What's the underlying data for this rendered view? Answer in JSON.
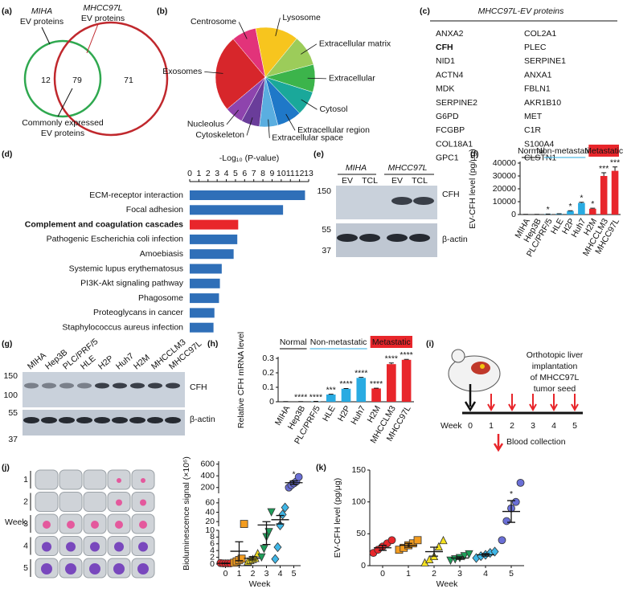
{
  "panel_labels": [
    "(a)",
    "(b)",
    "(c)",
    "(d)",
    "(e)",
    "(f)",
    "(g)",
    "(h)",
    "(i)",
    "(j)",
    "(k)"
  ],
  "venn": {
    "sets": [
      {
        "label_italic": "MIHA",
        "label": "EV proteins",
        "count": 12,
        "color": "#2fa84f"
      },
      {
        "label_italic": "MHCC97L",
        "label": "EV proteins",
        "count": 71,
        "color": "#c0282d"
      }
    ],
    "overlap": {
      "count": 79,
      "label": [
        "Commonly expressed",
        "EV proteins"
      ]
    }
  },
  "table": {
    "title": "MHCC97L-EV proteins",
    "columns": [
      [
        "ANXA2",
        "CFH",
        "NID1",
        "ACTN4",
        "MDK",
        "SERPINE2",
        "G6PD",
        "FCGBP",
        "COL18A1",
        "GPC1"
      ],
      [
        "COL2A1",
        "PLEC",
        "SERPINE1",
        "ANXA1",
        "FBLN1",
        "AKR1B10",
        "MET",
        "C1R",
        "S100A4",
        "CLSTN1"
      ]
    ],
    "highlight": [
      0,
      1
    ],
    "highlight_color": "#e8262b"
  },
  "blots": {
    "e": {
      "groups": [
        "MIHA",
        "MHCC97L"
      ],
      "lanes": [
        "EV",
        "TCL",
        "EV",
        "TCL"
      ],
      "markers": [
        150,
        55,
        37
      ],
      "bands": [
        "CFH",
        "β-actin"
      ]
    },
    "g": {
      "lanes": [
        "MIHA",
        "Hep3B",
        "PLC/PRF/5",
        "HLE",
        "H2P",
        "Huh7",
        "H2M",
        "MHCCLM3",
        "MHCC97L"
      ],
      "markers": [
        150,
        100,
        55,
        37
      ],
      "bands": [
        "CFH",
        "β-actin"
      ]
    }
  },
  "diagram": {
    "caption": [
      "Orthotopic liver",
      "implantation",
      "of MHCC97L",
      "tumor seed"
    ],
    "axis_label": "Week",
    "weeks": [
      0,
      1,
      2,
      3,
      4,
      5
    ],
    "legend": "Blood collection"
  },
  "images": {
    "axis_label": "Week",
    "rows": [
      1,
      2,
      3,
      4,
      5
    ]
  },
  "chart_data": [
    {
      "type": "pie",
      "categories": [
        "Exosomes",
        "Centrosome",
        "Lysosome",
        "Extracellular matrix",
        "Extracellular",
        "Cytosol",
        "Extracellular region",
        "Extracellular space",
        "Cytoskeleton",
        "Nucleolus"
      ],
      "values": [
        25,
        8,
        14,
        10,
        9,
        8,
        8,
        6,
        6,
        6
      ],
      "colors": [
        "#d7262b",
        "#e2337a",
        "#f7c51e",
        "#9ccc5a",
        "#3cb44b",
        "#1aa89a",
        "#1f78c8",
        "#5aaee0",
        "#6a3d9a",
        "#8e44ad"
      ]
    },
    {
      "type": "bar",
      "orientation": "horizontal",
      "x_label": "-Log₁₀ (P-value)",
      "categories": [
        "ECM-receptor interaction",
        "Focal adhesion",
        "Complement and coagulation cascades",
        "Pathogenic Escherichia coli infection",
        "Amoebiasis",
        "Systemic lupus erythematosus",
        "PI3K-Akt signaling pathway",
        "Phagosome",
        "Proteoglycans in cancer",
        "Staphylococcus aureus infection"
      ],
      "values": [
        12.6,
        10.2,
        5.3,
        5.2,
        4.8,
        3.5,
        3.3,
        3.2,
        2.7,
        2.6
      ],
      "colors": [
        "#2f6fb8",
        "#2f6fb8",
        "#e8262b",
        "#2f6fb8",
        "#2f6fb8",
        "#2f6fb8",
        "#2f6fb8",
        "#2f6fb8",
        "#2f6fb8",
        "#2f6fb8"
      ],
      "highlight": 2,
      "xlim": [
        0,
        13
      ],
      "xticks": [
        0,
        1,
        2,
        3,
        4,
        5,
        6,
        7,
        8,
        9,
        10,
        11,
        12,
        13
      ]
    },
    {
      "type": "bar",
      "y_label": "EV-CFH level (pg/μg)",
      "categories": [
        "MIHA",
        "Hep3B",
        "PLC/PRF/5",
        "HLE",
        "H2P",
        "Huh7",
        "H2M",
        "MHCCLM3",
        "MHCC97L"
      ],
      "values": [
        100,
        100,
        300,
        500,
        2700,
        9000,
        4500,
        30000,
        34000
      ],
      "errors": [
        50,
        50,
        100,
        100,
        300,
        500,
        400,
        2500,
        3000
      ],
      "annotations": [
        null,
        null,
        "*",
        null,
        "*",
        "*",
        "*",
        "***",
        "***"
      ],
      "colors": [
        "#222222",
        "#222222",
        "#29abe2",
        "#29abe2",
        "#29abe2",
        "#29abe2",
        "#e8262b",
        "#e8262b",
        "#e8262b"
      ],
      "groups": [
        {
          "name": "Normal",
          "color": "#000000",
          "count": 2
        },
        {
          "name": "Non-metastatic",
          "color": "#29abe2",
          "count": 4
        },
        {
          "name": "Metastatic",
          "color": "#e8262b",
          "count": 3,
          "filled": true
        }
      ],
      "ylim": [
        0,
        40000
      ],
      "yticks": [
        0,
        10000,
        20000,
        30000,
        40000
      ]
    },
    {
      "type": "bar",
      "y_label": "Relative CFH mRNA level",
      "categories": [
        "MIHA",
        "Hep3B",
        "PLC/PRF/5",
        "HLE",
        "H2P",
        "Huh7",
        "H2M",
        "MHCCLM3",
        "MHCC97L"
      ],
      "values": [
        0.001,
        0.001,
        0.002,
        0.05,
        0.09,
        0.165,
        0.092,
        0.26,
        0.29
      ],
      "errors": [
        0.0005,
        0.0005,
        0.0005,
        0.002,
        0.002,
        0.004,
        0.002,
        0.008,
        0.003
      ],
      "annotations": [
        null,
        "****",
        "****",
        "***",
        "****",
        "****",
        "****",
        "****",
        "****"
      ],
      "colors": [
        "#222222",
        "#222222",
        "#29abe2",
        "#29abe2",
        "#29abe2",
        "#29abe2",
        "#e8262b",
        "#e8262b",
        "#e8262b"
      ],
      "groups": [
        {
          "name": "Normal",
          "color": "#000000",
          "count": 2
        },
        {
          "name": "Non-metastatic",
          "color": "#29abe2",
          "count": 4
        },
        {
          "name": "Metastatic",
          "color": "#e8262b",
          "count": 3,
          "filled": true
        }
      ],
      "ylim": [
        0,
        0.3
      ],
      "yticks": [
        0,
        0.1,
        0.2,
        0.3
      ]
    },
    {
      "type": "scatter",
      "x_label": "Week",
      "y_label": "Bioluminescence signal (×10⁶)",
      "x": [
        0,
        1,
        2,
        3,
        4,
        5
      ],
      "xlim": [
        -0.5,
        5.5
      ],
      "xticks": [
        0,
        1,
        2,
        3,
        4,
        5
      ],
      "y_segments": [
        {
          "ylim": [
            0,
            10
          ],
          "yticks": [
            0,
            2,
            4,
            6,
            8,
            10
          ]
        },
        {
          "ylim": [
            10,
            70
          ],
          "yticks": [
            20,
            40,
            60
          ]
        },
        {
          "ylim": [
            100,
            650
          ],
          "yticks": [
            200,
            400,
            600
          ]
        }
      ],
      "groups": [
        {
          "values": [
            0.3,
            0.2,
            0.2,
            0.2,
            0.2
          ],
          "mean": 0.2,
          "sem": 0.05,
          "color": "#e8262b",
          "marker": "circle"
        },
        {
          "values": [
            0.4,
            0.8,
            1.2,
            1.6,
            15
          ],
          "mean": 3.8,
          "sem": 2.8,
          "color": "#f39c1f",
          "marker": "square"
        },
        {
          "values": [
            0.8,
            1.2,
            1.5,
            1.8,
            3.2
          ],
          "mean": 1.7,
          "sem": 0.5,
          "color": "#f5e11f",
          "marker": "triangle"
        },
        {
          "values": [
            2,
            4.5,
            8,
            9.5,
            40
          ],
          "mean": 12.8,
          "sem": 7,
          "color": "#1f9e5a",
          "marker": "triangle-down"
        },
        {
          "values": [
            1.5,
            5,
            12,
            35,
            50
          ],
          "mean": 24,
          "sem": 9,
          "color": "#3fb6e6",
          "marker": "diamond"
        },
        {
          "values": [
            200,
            240,
            270,
            300,
            380
          ],
          "mean": 282,
          "sem": 30,
          "color": "#6a6fd6",
          "marker": "circle"
        }
      ],
      "annotations": [
        null,
        null,
        null,
        null,
        null,
        "*"
      ]
    },
    {
      "type": "scatter",
      "x_label": "Week",
      "y_label": "EV-CFH level (pg/μg)",
      "x": [
        0,
        1,
        2,
        3,
        4,
        5
      ],
      "xlim": [
        -0.5,
        5.5
      ],
      "xticks": [
        0,
        1,
        2,
        3,
        4,
        5
      ],
      "ylim": [
        0,
        150
      ],
      "yticks": [
        0,
        50,
        100,
        150
      ],
      "groups": [
        {
          "values": [
            20,
            25,
            30,
            35,
            40
          ],
          "mean": 28,
          "sem": 4,
          "color": "#e8262b",
          "marker": "circle"
        },
        {
          "values": [
            25,
            28,
            32,
            35,
            40
          ],
          "mean": 32,
          "sem": 3,
          "color": "#f39c1f",
          "marker": "square"
        },
        {
          "values": [
            5,
            10,
            15,
            30,
            40
          ],
          "mean": 22,
          "sem": 7,
          "color": "#f5e11f",
          "marker": "triangle"
        },
        {
          "values": [
            8,
            10,
            12,
            15,
            18
          ],
          "mean": 12,
          "sem": 2,
          "color": "#1f9e5a",
          "marker": "triangle-down"
        },
        {
          "values": [
            12,
            15,
            17,
            20,
            22
          ],
          "mean": 17,
          "sem": 2,
          "color": "#3fb6e6",
          "marker": "diamond"
        },
        {
          "values": [
            40,
            70,
            90,
            100,
            130
          ],
          "mean": 85,
          "sem": 17,
          "color": "#6a6fd6",
          "marker": "circle"
        }
      ],
      "annotations": [
        null,
        null,
        null,
        null,
        null,
        "*"
      ]
    }
  ]
}
